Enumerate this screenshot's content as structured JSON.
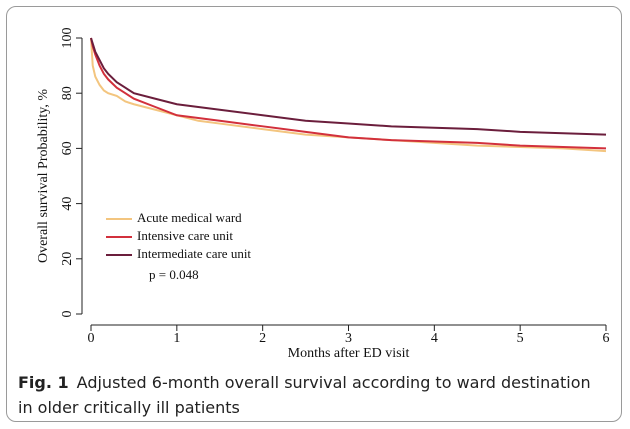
{
  "chart_data": {
    "type": "line",
    "x_label": "Months after ED visit",
    "y_label": "Overall survival Probability, %",
    "annotation": "p = 0.048",
    "x": [
      0,
      0.02,
      0.05,
      0.1,
      0.15,
      0.2,
      0.3,
      0.4,
      0.5,
      0.75,
      1,
      1.25,
      1.5,
      2,
      2.5,
      3,
      3.5,
      4,
      4.5,
      5,
      5.5,
      6
    ],
    "series": [
      {
        "name": "Acute medical ward",
        "color": "#f3c57f",
        "values": [
          100,
          90,
          86,
          83,
          81,
          80,
          79,
          77,
          76,
          74,
          72,
          70,
          69,
          67,
          65,
          64,
          63,
          62,
          61,
          60.5,
          60,
          59
        ]
      },
      {
        "name": "Intensive care unit",
        "color": "#d2303c",
        "values": [
          100,
          97,
          94,
          90,
          87,
          85,
          82,
          80,
          78,
          75,
          72,
          71,
          70,
          68,
          66,
          64,
          63,
          62.5,
          62,
          61,
          60.5,
          60
        ]
      },
      {
        "name": "Intermediate care unit",
        "color": "#6b1e3c",
        "values": [
          100,
          98,
          95,
          92,
          89,
          87,
          84,
          82,
          80,
          78,
          76,
          75,
          74,
          72,
          70,
          69,
          68,
          67.5,
          67,
          66,
          65.5,
          65
        ]
      }
    ],
    "xlim": [
      0,
      6
    ],
    "xticks": [
      0,
      1,
      2,
      3,
      4,
      5,
      6
    ],
    "ylim": [
      0,
      100
    ],
    "yticks": [
      0,
      20,
      40,
      60,
      80,
      100
    ],
    "grid": false
  },
  "caption": {
    "label": "Fig. 1",
    "text": "Adjusted 6-month overall survival according to ward destination in older critically ill patients"
  }
}
